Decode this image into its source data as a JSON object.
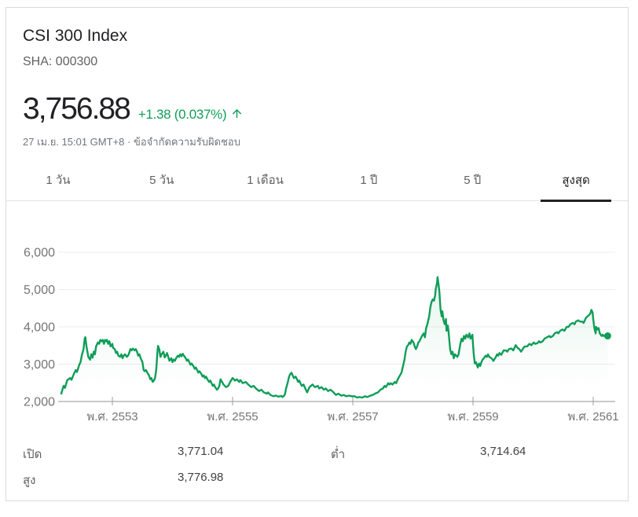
{
  "header": {
    "title": "CSI 300 Index",
    "ticker": "SHA: 000300"
  },
  "quote": {
    "price": "3,756.88",
    "change": "+1.38 (0.037%)",
    "direction": "up",
    "accent_color": "#0f9d58",
    "timestamp": "27 เม.ย. 15:01 GMT+8",
    "separator": "·",
    "disclaimer": "ข้อจำกัดความรับผิดชอบ"
  },
  "ranges": {
    "tabs": [
      {
        "id": "1-day",
        "label": "1 วัน",
        "active": false
      },
      {
        "id": "5-day",
        "label": "5 วัน",
        "active": false
      },
      {
        "id": "1-month",
        "label": "1 เดือน",
        "active": false
      },
      {
        "id": "1-year",
        "label": "1 ปี",
        "active": false
      },
      {
        "id": "5-year",
        "label": "5 ปี",
        "active": false
      },
      {
        "id": "max",
        "label": "สูงสุด",
        "active": true
      }
    ]
  },
  "chart_data": {
    "type": "area",
    "series_name": "CSI 300 Index",
    "line_color": "#0f9d58",
    "grid_color": "#ececec",
    "axis_color": "#b7b7b7",
    "tick_color": "#9e9e9e",
    "label_color": "#757575",
    "x_ticks": [
      {
        "year": 2010,
        "label": "พ.ศ. 2553"
      },
      {
        "year": 2012,
        "label": "พ.ศ. 2555"
      },
      {
        "year": 2014,
        "label": "พ.ศ. 2557"
      },
      {
        "year": 2016,
        "label": "พ.ศ. 2559"
      },
      {
        "year": 2018,
        "label": "พ.ศ. 2561"
      }
    ],
    "y_ticks": [
      {
        "value": 2000,
        "label": "2,000"
      },
      {
        "value": 3000,
        "label": "3,000"
      },
      {
        "value": 4000,
        "label": "4,000"
      },
      {
        "value": 5000,
        "label": "5,000"
      },
      {
        "value": 6000,
        "label": "6,000"
      }
    ],
    "ylim": [
      2000,
      6450
    ],
    "xlim": [
      2009.1,
      2018.37
    ],
    "end_dot": true,
    "points": [
      [
        2009.15,
        2210
      ],
      [
        2009.17,
        2320
      ],
      [
        2009.19,
        2420
      ],
      [
        2009.21,
        2365
      ],
      [
        2009.25,
        2570
      ],
      [
        2009.3,
        2630
      ],
      [
        2009.32,
        2580
      ],
      [
        2009.36,
        2735
      ],
      [
        2009.39,
        2840
      ],
      [
        2009.41,
        2790
      ],
      [
        2009.45,
        2985
      ],
      [
        2009.47,
        3055
      ],
      [
        2009.49,
        3225
      ],
      [
        2009.52,
        3405
      ],
      [
        2009.54,
        3685
      ],
      [
        2009.55,
        3725
      ],
      [
        2009.57,
        3475
      ],
      [
        2009.6,
        3195
      ],
      [
        2009.63,
        3120
      ],
      [
        2009.65,
        3265
      ],
      [
        2009.67,
        3175
      ],
      [
        2009.69,
        3335
      ],
      [
        2009.71,
        3265
      ],
      [
        2009.73,
        3475
      ],
      [
        2009.76,
        3580
      ],
      [
        2009.78,
        3545
      ],
      [
        2009.8,
        3650
      ],
      [
        2009.82,
        3615
      ],
      [
        2009.84,
        3650
      ],
      [
        2009.86,
        3545
      ],
      [
        2009.88,
        3650
      ],
      [
        2009.9,
        3615
      ],
      [
        2009.91,
        3650
      ],
      [
        2009.93,
        3545
      ],
      [
        2009.95,
        3615
      ],
      [
        2009.97,
        3475
      ],
      [
        2010.0,
        3545
      ],
      [
        2010.01,
        3440
      ],
      [
        2010.04,
        3405
      ],
      [
        2010.06,
        3300
      ],
      [
        2010.08,
        3335
      ],
      [
        2010.1,
        3230
      ],
      [
        2010.13,
        3195
      ],
      [
        2010.15,
        3265
      ],
      [
        2010.17,
        3160
      ],
      [
        2010.19,
        3230
      ],
      [
        2010.21,
        3265
      ],
      [
        2010.24,
        3195
      ],
      [
        2010.26,
        3230
      ],
      [
        2010.28,
        3300
      ],
      [
        2010.3,
        3405
      ],
      [
        2010.32,
        3370
      ],
      [
        2010.34,
        3420
      ],
      [
        2010.37,
        3370
      ],
      [
        2010.39,
        3405
      ],
      [
        2010.41,
        3335
      ],
      [
        2010.43,
        3230
      ],
      [
        2010.45,
        3265
      ],
      [
        2010.47,
        3160
      ],
      [
        2010.5,
        3055
      ],
      [
        2010.52,
        2845
      ],
      [
        2010.54,
        2810
      ],
      [
        2010.56,
        2845
      ],
      [
        2010.58,
        2775
      ],
      [
        2010.61,
        2700
      ],
      [
        2010.63,
        2595
      ],
      [
        2010.65,
        2630
      ],
      [
        2010.67,
        2525
      ],
      [
        2010.69,
        2560
      ],
      [
        2010.71,
        2630
      ],
      [
        2010.73,
        2845
      ],
      [
        2010.75,
        3335
      ],
      [
        2010.76,
        3490
      ],
      [
        2010.78,
        3405
      ],
      [
        2010.8,
        3195
      ],
      [
        2010.82,
        3265
      ],
      [
        2010.85,
        3335
      ],
      [
        2010.87,
        3180
      ],
      [
        2010.89,
        3230
      ],
      [
        2010.91,
        3300
      ],
      [
        2010.93,
        3195
      ],
      [
        2010.95,
        3090
      ],
      [
        2010.98,
        3160
      ],
      [
        2011.0,
        3055
      ],
      [
        2011.02,
        3125
      ],
      [
        2011.04,
        3090
      ],
      [
        2011.06,
        3160
      ],
      [
        2011.09,
        3230
      ],
      [
        2011.11,
        3195
      ],
      [
        2011.13,
        3265
      ],
      [
        2011.15,
        3210
      ],
      [
        2011.17,
        3280
      ],
      [
        2011.19,
        3230
      ],
      [
        2011.22,
        3160
      ],
      [
        2011.24,
        3090
      ],
      [
        2011.26,
        3125
      ],
      [
        2011.28,
        3055
      ],
      [
        2011.3,
        2985
      ],
      [
        2011.32,
        3020
      ],
      [
        2011.35,
        2945
      ],
      [
        2011.37,
        2875
      ],
      [
        2011.39,
        2910
      ],
      [
        2011.41,
        2845
      ],
      [
        2011.43,
        2775
      ],
      [
        2011.45,
        2810
      ],
      [
        2011.48,
        2740
      ],
      [
        2011.5,
        2670
      ],
      [
        2011.52,
        2700
      ],
      [
        2011.54,
        2630
      ],
      [
        2011.56,
        2665
      ],
      [
        2011.58,
        2595
      ],
      [
        2011.61,
        2525
      ],
      [
        2011.63,
        2560
      ],
      [
        2011.65,
        2490
      ],
      [
        2011.67,
        2420
      ],
      [
        2011.69,
        2455
      ],
      [
        2011.71,
        2385
      ],
      [
        2011.74,
        2315
      ],
      [
        2011.76,
        2350
      ],
      [
        2011.78,
        2420
      ],
      [
        2011.8,
        2595
      ],
      [
        2011.85,
        2455
      ],
      [
        2011.89,
        2385
      ],
      [
        2011.93,
        2420
      ],
      [
        2011.96,
        2525
      ],
      [
        2012.0,
        2630
      ],
      [
        2012.04,
        2560
      ],
      [
        2012.07,
        2595
      ],
      [
        2012.11,
        2525
      ],
      [
        2012.13,
        2575
      ],
      [
        2012.17,
        2490
      ],
      [
        2012.22,
        2525
      ],
      [
        2012.26,
        2455
      ],
      [
        2012.31,
        2385
      ],
      [
        2012.35,
        2420
      ],
      [
        2012.39,
        2350
      ],
      [
        2012.44,
        2280
      ],
      [
        2012.48,
        2315
      ],
      [
        2012.52,
        2245
      ],
      [
        2012.57,
        2210
      ],
      [
        2012.59,
        2245
      ],
      [
        2012.63,
        2175
      ],
      [
        2012.68,
        2140
      ],
      [
        2012.72,
        2160
      ],
      [
        2012.76,
        2130
      ],
      [
        2012.81,
        2150
      ],
      [
        2012.83,
        2120
      ],
      [
        2012.85,
        2140
      ],
      [
        2012.87,
        2190
      ],
      [
        2012.89,
        2350
      ],
      [
        2012.92,
        2525
      ],
      [
        2012.94,
        2665
      ],
      [
        2012.96,
        2735
      ],
      [
        2012.98,
        2770
      ],
      [
        2013.0,
        2700
      ],
      [
        2013.02,
        2630
      ],
      [
        2013.05,
        2665
      ],
      [
        2013.07,
        2600
      ],
      [
        2013.09,
        2525
      ],
      [
        2013.11,
        2560
      ],
      [
        2013.13,
        2490
      ],
      [
        2013.15,
        2420
      ],
      [
        2013.18,
        2455
      ],
      [
        2013.2,
        2385
      ],
      [
        2013.22,
        2315
      ],
      [
        2013.24,
        2245
      ],
      [
        2013.28,
        2385
      ],
      [
        2013.33,
        2455
      ],
      [
        2013.37,
        2385
      ],
      [
        2013.42,
        2420
      ],
      [
        2013.44,
        2350
      ],
      [
        2013.48,
        2385
      ],
      [
        2013.52,
        2315
      ],
      [
        2013.55,
        2350
      ],
      [
        2013.59,
        2280
      ],
      [
        2013.63,
        2315
      ],
      [
        2013.68,
        2245
      ],
      [
        2013.72,
        2175
      ],
      [
        2013.76,
        2210
      ],
      [
        2013.81,
        2155
      ],
      [
        2013.85,
        2175
      ],
      [
        2013.89,
        2140
      ],
      [
        2013.94,
        2155
      ],
      [
        2013.98,
        2140
      ],
      [
        2014.03,
        2140
      ],
      [
        2014.07,
        2105
      ],
      [
        2014.11,
        2120
      ],
      [
        2014.16,
        2105
      ],
      [
        2014.2,
        2140
      ],
      [
        2014.24,
        2120
      ],
      [
        2014.29,
        2155
      ],
      [
        2014.33,
        2175
      ],
      [
        2014.37,
        2210
      ],
      [
        2014.42,
        2245
      ],
      [
        2014.46,
        2315
      ],
      [
        2014.5,
        2350
      ],
      [
        2014.53,
        2420
      ],
      [
        2014.55,
        2385
      ],
      [
        2014.59,
        2490
      ],
      [
        2014.61,
        2455
      ],
      [
        2014.63,
        2490
      ],
      [
        2014.66,
        2455
      ],
      [
        2014.68,
        2490
      ],
      [
        2014.7,
        2525
      ],
      [
        2014.72,
        2490
      ],
      [
        2014.74,
        2560
      ],
      [
        2014.76,
        2630
      ],
      [
        2014.81,
        2770
      ],
      [
        2014.84,
        2985
      ],
      [
        2014.86,
        3125
      ],
      [
        2014.88,
        3335
      ],
      [
        2014.9,
        3475
      ],
      [
        2014.92,
        3510
      ],
      [
        2014.94,
        3580
      ],
      [
        2014.96,
        3545
      ],
      [
        2014.98,
        3650
      ],
      [
        2015.01,
        3580
      ],
      [
        2015.03,
        3475
      ],
      [
        2015.05,
        3405
      ],
      [
        2015.07,
        3475
      ],
      [
        2015.09,
        3580
      ],
      [
        2015.11,
        3615
      ],
      [
        2015.13,
        3685
      ],
      [
        2015.15,
        3755
      ],
      [
        2015.18,
        3825
      ],
      [
        2015.2,
        3720
      ],
      [
        2015.22,
        3965
      ],
      [
        2015.24,
        4070
      ],
      [
        2015.27,
        4280
      ],
      [
        2015.29,
        4525
      ],
      [
        2015.31,
        4665
      ],
      [
        2015.33,
        4735
      ],
      [
        2015.35,
        4700
      ],
      [
        2015.37,
        4840
      ],
      [
        2015.38,
        5020
      ],
      [
        2015.4,
        5160
      ],
      [
        2015.41,
        5333
      ],
      [
        2015.43,
        5090
      ],
      [
        2015.44,
        4945
      ],
      [
        2015.46,
        4455
      ],
      [
        2015.48,
        4280
      ],
      [
        2015.49,
        4420
      ],
      [
        2015.51,
        4175
      ],
      [
        2015.53,
        4070
      ],
      [
        2015.55,
        4210
      ],
      [
        2015.56,
        3895
      ],
      [
        2015.58,
        4035
      ],
      [
        2015.59,
        3930
      ],
      [
        2015.62,
        3405
      ],
      [
        2015.64,
        3265
      ],
      [
        2015.66,
        3335
      ],
      [
        2015.68,
        3160
      ],
      [
        2015.7,
        3265
      ],
      [
        2015.72,
        3230
      ],
      [
        2015.74,
        3195
      ],
      [
        2015.76,
        3265
      ],
      [
        2015.79,
        3545
      ],
      [
        2015.81,
        3685
      ],
      [
        2015.83,
        3615
      ],
      [
        2015.85,
        3755
      ],
      [
        2015.87,
        3685
      ],
      [
        2015.89,
        3790
      ],
      [
        2015.92,
        3720
      ],
      [
        2015.94,
        3825
      ],
      [
        2015.96,
        3685
      ],
      [
        2015.99,
        3790
      ],
      [
        2016.01,
        3300
      ],
      [
        2016.03,
        3018
      ],
      [
        2016.05,
        3055
      ],
      [
        2016.08,
        2912
      ],
      [
        2016.1,
        3020
      ],
      [
        2016.12,
        2950
      ],
      [
        2016.14,
        3055
      ],
      [
        2016.16,
        3123
      ],
      [
        2016.18,
        3158
      ],
      [
        2016.21,
        3228
      ],
      [
        2016.23,
        3193
      ],
      [
        2016.25,
        3264
      ],
      [
        2016.27,
        3193
      ],
      [
        2016.31,
        3158
      ],
      [
        2016.34,
        3088
      ],
      [
        2016.38,
        3193
      ],
      [
        2016.4,
        3264
      ],
      [
        2016.42,
        3228
      ],
      [
        2016.44,
        3299
      ],
      [
        2016.47,
        3250
      ],
      [
        2016.51,
        3369
      ],
      [
        2016.55,
        3369
      ],
      [
        2016.57,
        3334
      ],
      [
        2016.6,
        3404
      ],
      [
        2016.64,
        3418
      ],
      [
        2016.67,
        3369
      ],
      [
        2016.71,
        3510
      ],
      [
        2016.74,
        3439
      ],
      [
        2016.77,
        3404
      ],
      [
        2016.8,
        3334
      ],
      [
        2016.84,
        3439
      ],
      [
        2016.86,
        3475
      ],
      [
        2016.9,
        3475
      ],
      [
        2016.94,
        3545
      ],
      [
        2016.97,
        3510
      ],
      [
        2017.01,
        3580
      ],
      [
        2017.03,
        3545
      ],
      [
        2017.07,
        3559
      ],
      [
        2017.1,
        3615
      ],
      [
        2017.12,
        3580
      ],
      [
        2017.16,
        3615
      ],
      [
        2017.19,
        3685
      ],
      [
        2017.23,
        3720
      ],
      [
        2017.27,
        3755
      ],
      [
        2017.29,
        3720
      ],
      [
        2017.33,
        3755
      ],
      [
        2017.36,
        3825
      ],
      [
        2017.4,
        3860
      ],
      [
        2017.42,
        3825
      ],
      [
        2017.45,
        3895
      ],
      [
        2017.49,
        3930
      ],
      [
        2017.52,
        3895
      ],
      [
        2017.56,
        4000
      ],
      [
        2017.59,
        4000
      ],
      [
        2017.62,
        4070
      ],
      [
        2017.66,
        4105
      ],
      [
        2017.69,
        4070
      ],
      [
        2017.71,
        4140
      ],
      [
        2017.75,
        4175
      ],
      [
        2017.78,
        4140
      ],
      [
        2017.82,
        4140
      ],
      [
        2017.84,
        4105
      ],
      [
        2017.88,
        4245
      ],
      [
        2017.92,
        4301
      ],
      [
        2017.95,
        4351
      ],
      [
        2017.97,
        4456
      ],
      [
        2017.99,
        4385
      ],
      [
        2018.0,
        4210
      ],
      [
        2018.02,
        3965
      ],
      [
        2018.04,
        3825
      ],
      [
        2018.05,
        4000
      ],
      [
        2018.07,
        3930
      ],
      [
        2018.09,
        3966
      ],
      [
        2018.1,
        3895
      ],
      [
        2018.11,
        3825
      ],
      [
        2018.14,
        3755
      ],
      [
        2018.16,
        3790
      ],
      [
        2018.17,
        3755
      ],
      [
        2018.2,
        3769
      ],
      [
        2018.22,
        3734
      ],
      [
        2018.24,
        3757
      ]
    ]
  },
  "stats": {
    "columns": [
      {
        "cells": [
          {
            "id": "open",
            "label": "เปิด",
            "value": "3,771.04"
          },
          {
            "id": "high",
            "label": "สูง",
            "value": "3,776.98"
          }
        ]
      },
      {
        "cells": [
          {
            "id": "low",
            "label": "ต่ำ",
            "value": "3,714.64"
          }
        ]
      }
    ]
  }
}
